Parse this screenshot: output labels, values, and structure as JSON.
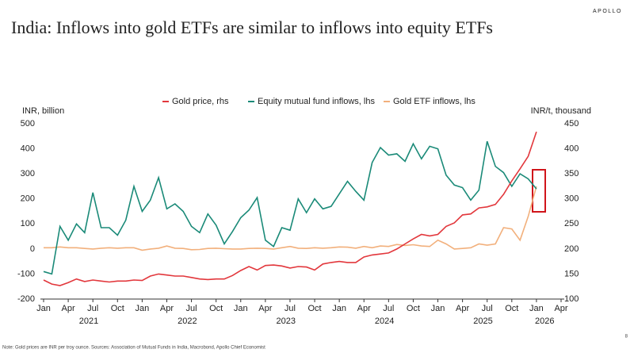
{
  "brand": "APOLLO",
  "page_number": "8",
  "note": "Note: Gold prices are INR per troy ounce. Sources: Association of Mutual Funds in India, Macrobond, Apollo Chief Economist",
  "chart_data": {
    "type": "line",
    "title": "India: Inflows into gold ETFs are similar to inflows into equity ETFs",
    "y_label": "INR, billion",
    "y2_label": "INR/t, thousand",
    "categories": [
      "Jan",
      null,
      null,
      "Apr",
      null,
      null,
      "Jul",
      null,
      null,
      "Oct",
      null,
      null,
      "Jan",
      null,
      null,
      "Apr",
      null,
      null,
      "Jul",
      null,
      null,
      "Oct",
      null,
      null,
      "Jan",
      null,
      null,
      "Apr",
      null,
      null,
      "Jul",
      null,
      null,
      "Oct",
      null,
      null,
      "Jan",
      null,
      null,
      "Apr",
      null,
      null,
      "Jul",
      null,
      null,
      "Oct",
      null,
      null,
      "Jan",
      null,
      null,
      "Apr",
      null,
      null,
      "Jul",
      null,
      null,
      "Oct",
      null,
      null,
      "Jan",
      null,
      null,
      "Apr"
    ],
    "year_labels": [
      "2021",
      "2022",
      "2023",
      "2024",
      "2025",
      "2026"
    ],
    "ylim": [
      -200,
      500
    ],
    "yticks": [
      -200,
      -100,
      0,
      100,
      200,
      300,
      400,
      500
    ],
    "y2lim": [
      100,
      450
    ],
    "y2ticks": [
      100,
      150,
      200,
      250,
      300,
      350,
      400,
      450
    ],
    "legend": "top",
    "series": [
      {
        "name": "Gold price, rhs",
        "color": "#e2373c",
        "axis": "y2",
        "values": [
          138,
          130,
          127,
          133,
          140,
          135,
          138,
          136,
          134,
          136,
          136,
          138,
          137,
          146,
          150,
          148,
          146,
          146,
          143,
          140,
          139,
          140,
          140,
          147,
          157,
          165,
          158,
          167,
          168,
          166,
          162,
          165,
          164,
          158,
          170,
          173,
          175,
          173,
          173,
          184,
          188,
          190,
          192,
          200,
          210,
          220,
          229,
          226,
          229,
          245,
          252,
          268,
          270,
          282,
          284,
          289,
          309,
          336,
          360,
          385,
          434,
          null,
          null,
          null
        ]
      },
      {
        "name": "Equity mutual fund inflows, lhs",
        "color": "#1a8a78",
        "values": [
          -90,
          -100,
          90,
          35,
          100,
          65,
          225,
          85,
          85,
          55,
          115,
          250,
          150,
          195,
          285,
          160,
          180,
          150,
          90,
          65,
          140,
          95,
          20,
          70,
          125,
          155,
          205,
          35,
          10,
          85,
          75,
          200,
          145,
          200,
          160,
          170,
          220,
          270,
          230,
          195,
          345,
          405,
          375,
          380,
          350,
          420,
          360,
          410,
          400,
          295,
          255,
          245,
          195,
          235,
          430,
          330,
          305,
          250,
          300,
          280,
          240,
          null,
          null,
          null
        ]
      },
      {
        "name": "Gold ETF inflows, lhs",
        "color": "#f2b07c",
        "values": [
          5,
          5,
          8,
          5,
          5,
          2,
          0,
          3,
          5,
          3,
          5,
          5,
          -5,
          0,
          3,
          12,
          3,
          2,
          -3,
          -2,
          2,
          3,
          1,
          0,
          0,
          2,
          3,
          2,
          0,
          5,
          10,
          3,
          2,
          5,
          3,
          5,
          8,
          7,
          3,
          10,
          5,
          12,
          10,
          18,
          14,
          17,
          12,
          10,
          35,
          20,
          0,
          2,
          5,
          20,
          15,
          20,
          85,
          80,
          35,
          130,
          250,
          null,
          null,
          null
        ]
      }
    ]
  }
}
